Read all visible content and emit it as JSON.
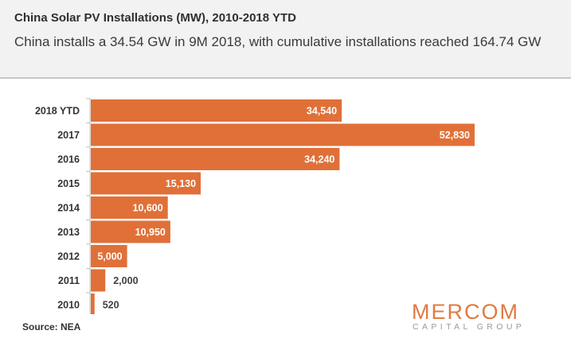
{
  "title": "China Solar PV Installations (MW), 2010-2018 YTD",
  "subtitle": "China installs  a 34.54  GW in 9M 2018, with cumulative installations reached 164.74  GW",
  "source": "Source: NEA",
  "logo": {
    "main": "MERCOM",
    "sub": "CAPITAL GROUP"
  },
  "colors": {
    "bar": "#e07038",
    "header_bg": "#f2f2f2",
    "logo_main": "#e07a43",
    "logo_sub": "#9a9a9a"
  },
  "chart_data": {
    "type": "bar",
    "orientation": "horizontal",
    "categories": [
      "2018 YTD",
      "2017",
      "2016",
      "2015",
      "2014",
      "2013",
      "2012",
      "2011",
      "2010"
    ],
    "values": [
      34540,
      52830,
      34240,
      15130,
      10600,
      10950,
      5000,
      2000,
      520
    ],
    "value_labels": [
      "34,540",
      "52,830",
      "34,240",
      "15,130",
      "10,600",
      "10,950",
      "5,000",
      "2,000",
      "520"
    ],
    "title": "China Solar PV Installations (MW), 2010-2018 YTD",
    "xlabel": "",
    "ylabel": "",
    "xlim": [
      0,
      55000
    ],
    "grid": false,
    "legend": "none"
  }
}
